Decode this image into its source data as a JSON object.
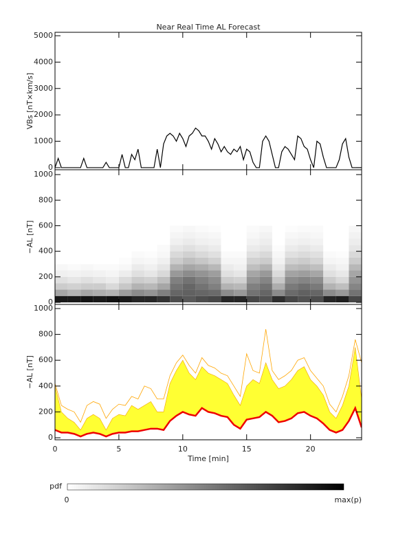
{
  "chart_data": [
    {
      "type": "line",
      "title": "Near Real Time AL Forecast",
      "ylabel": "VBs [nT×km/s]",
      "xlim": [
        0,
        24
      ],
      "ylim": [
        -80,
        5130
      ],
      "yticks": [
        0,
        1000,
        2000,
        3000,
        4000,
        5000
      ],
      "series": [
        {
          "color": "#000000",
          "x": [
            0,
            0.25,
            0.5,
            0.75,
            1,
            1.25,
            1.5,
            1.75,
            2,
            2.25,
            2.5,
            2.75,
            3,
            3.25,
            3.5,
            3.75,
            4,
            4.25,
            4.5,
            4.75,
            5,
            5.25,
            5.5,
            5.75,
            6,
            6.25,
            6.5,
            6.75,
            7,
            7.25,
            7.5,
            7.75,
            8,
            8.25,
            8.5,
            8.75,
            9,
            9.25,
            9.5,
            9.75,
            10,
            10.25,
            10.5,
            10.75,
            11,
            11.25,
            11.5,
            11.75,
            12,
            12.25,
            12.5,
            12.75,
            13,
            13.25,
            13.5,
            13.75,
            14,
            14.25,
            14.5,
            14.75,
            15,
            15.25,
            15.5,
            15.75,
            16,
            16.25,
            16.5,
            16.75,
            17,
            17.25,
            17.5,
            17.75,
            18,
            18.25,
            18.5,
            18.75,
            19,
            19.25,
            19.5,
            19.75,
            20,
            20.25,
            20.5,
            20.75,
            21,
            21.25,
            21.5,
            21.75,
            22,
            22.25,
            22.5,
            22.75,
            23,
            23.25,
            23.5,
            23.75,
            24
          ],
          "values": [
            0,
            350,
            0,
            0,
            0,
            0,
            0,
            0,
            0,
            350,
            0,
            0,
            0,
            0,
            0,
            0,
            200,
            0,
            0,
            0,
            0,
            500,
            0,
            0,
            500,
            300,
            700,
            0,
            0,
            0,
            0,
            0,
            700,
            0,
            900,
            1200,
            1300,
            1200,
            1000,
            1300,
            1100,
            800,
            1200,
            1300,
            1500,
            1400,
            1200,
            1200,
            1000,
            700,
            1100,
            900,
            600,
            800,
            600,
            500,
            700,
            600,
            800,
            300,
            700,
            600,
            200,
            0,
            0,
            1000,
            1200,
            1000,
            500,
            0,
            0,
            600,
            800,
            700,
            500,
            300,
            1200,
            1100,
            800,
            700,
            300,
            0,
            1000,
            900,
            400,
            0,
            0,
            0,
            0,
            300,
            900,
            1100,
            400,
            0,
            0,
            0,
            0
          ]
        }
      ]
    },
    {
      "type": "heatmap",
      "ylabel": "−AL [nT]",
      "xlim": [
        0,
        24
      ],
      "ylim": [
        -16,
        1038
      ],
      "yticks": [
        0,
        200,
        400,
        600,
        800,
        1000
      ],
      "xbins": [
        0,
        1,
        2,
        3,
        4,
        5,
        6,
        7,
        8,
        9,
        10,
        11,
        12,
        13,
        14,
        15,
        16,
        17,
        18,
        19,
        20,
        21,
        22,
        23,
        24
      ],
      "ybins": [
        0,
        50,
        100,
        150,
        200,
        250,
        300,
        350,
        400,
        450,
        500,
        550,
        600
      ],
      "z": [
        [
          0.9,
          0.35,
          0.2,
          0.12,
          0.06,
          0.03,
          0,
          0,
          0,
          0,
          0,
          0
        ],
        [
          0.9,
          0.3,
          0.18,
          0.1,
          0.05,
          0.02,
          0,
          0,
          0,
          0,
          0,
          0
        ],
        [
          0.92,
          0.35,
          0.2,
          0.12,
          0.06,
          0.03,
          0,
          0,
          0,
          0,
          0,
          0
        ],
        [
          0.9,
          0.32,
          0.2,
          0.1,
          0.05,
          0.02,
          0,
          0,
          0,
          0,
          0,
          0
        ],
        [
          0.93,
          0.3,
          0.15,
          0.08,
          0.04,
          0.02,
          0,
          0,
          0,
          0,
          0,
          0
        ],
        [
          0.9,
          0.38,
          0.22,
          0.14,
          0.07,
          0.03,
          0.01,
          0,
          0,
          0,
          0,
          0
        ],
        [
          0.85,
          0.45,
          0.3,
          0.2,
          0.12,
          0.08,
          0.04,
          0.02,
          0,
          0,
          0,
          0
        ],
        [
          0.85,
          0.42,
          0.28,
          0.18,
          0.1,
          0.06,
          0.03,
          0.01,
          0,
          0,
          0,
          0
        ],
        [
          0.8,
          0.5,
          0.35,
          0.25,
          0.15,
          0.1,
          0.06,
          0.03,
          0.02,
          0,
          0,
          0
        ],
        [
          0.7,
          0.6,
          0.55,
          0.5,
          0.4,
          0.3,
          0.2,
          0.15,
          0.1,
          0.06,
          0.04,
          0.02
        ],
        [
          0.65,
          0.62,
          0.6,
          0.55,
          0.45,
          0.35,
          0.25,
          0.18,
          0.12,
          0.08,
          0.05,
          0.03
        ],
        [
          0.7,
          0.6,
          0.55,
          0.5,
          0.42,
          0.32,
          0.22,
          0.15,
          0.1,
          0.06,
          0.04,
          0.02
        ],
        [
          0.72,
          0.58,
          0.5,
          0.45,
          0.38,
          0.28,
          0.18,
          0.12,
          0.08,
          0.05,
          0.03,
          0.01
        ],
        [
          0.85,
          0.45,
          0.3,
          0.2,
          0.12,
          0.08,
          0.04,
          0.02,
          0,
          0,
          0,
          0
        ],
        [
          0.85,
          0.4,
          0.28,
          0.18,
          0.1,
          0.06,
          0.04,
          0.02,
          0,
          0,
          0,
          0
        ],
        [
          0.72,
          0.55,
          0.5,
          0.42,
          0.35,
          0.25,
          0.18,
          0.12,
          0.08,
          0.05,
          0.03,
          0.02
        ],
        [
          0.68,
          0.6,
          0.55,
          0.48,
          0.4,
          0.3,
          0.2,
          0.15,
          0.1,
          0.07,
          0.05,
          0.03
        ],
        [
          0.82,
          0.45,
          0.32,
          0.22,
          0.14,
          0.09,
          0.05,
          0.03,
          0.01,
          0,
          0,
          0
        ],
        [
          0.72,
          0.58,
          0.52,
          0.45,
          0.36,
          0.26,
          0.18,
          0.12,
          0.08,
          0.05,
          0.03,
          0.01
        ],
        [
          0.68,
          0.62,
          0.56,
          0.48,
          0.38,
          0.28,
          0.2,
          0.14,
          0.1,
          0.06,
          0.04,
          0.02
        ],
        [
          0.7,
          0.6,
          0.52,
          0.45,
          0.35,
          0.25,
          0.17,
          0.12,
          0.08,
          0.05,
          0.03,
          0.02
        ],
        [
          0.85,
          0.45,
          0.3,
          0.2,
          0.12,
          0.08,
          0.04,
          0.02,
          0,
          0,
          0,
          0
        ],
        [
          0.88,
          0.4,
          0.25,
          0.15,
          0.09,
          0.05,
          0.03,
          0.01,
          0,
          0,
          0,
          0
        ],
        [
          0.72,
          0.55,
          0.48,
          0.42,
          0.35,
          0.28,
          0.2,
          0.15,
          0.1,
          0.07,
          0.05,
          0.03
        ]
      ],
      "colorbar": {
        "label": "pdf",
        "min_label": "0",
        "max_label": "max(p)"
      }
    },
    {
      "type": "area",
      "ylabel": "−AL [nT]",
      "xlabel": "Time [min]",
      "xlim": [
        0,
        24
      ],
      "ylim": [
        -16,
        1032
      ],
      "yticks": [
        0,
        200,
        400,
        600,
        800,
        1000
      ],
      "xticks": [
        0,
        5,
        10,
        15,
        20
      ],
      "x": [
        0,
        0.5,
        1,
        1.5,
        2,
        2.5,
        3,
        3.5,
        4,
        4.5,
        5,
        5.5,
        6,
        6.5,
        7,
        7.5,
        8,
        8.5,
        9,
        9.5,
        10,
        10.5,
        11,
        11.5,
        12,
        12.5,
        13,
        13.5,
        14,
        14.5,
        15,
        15.5,
        16,
        16.5,
        17,
        17.5,
        18,
        18.5,
        19,
        19.5,
        20,
        20.5,
        21,
        21.5,
        22,
        22.5,
        23,
        23.5,
        24
      ],
      "band": {
        "color": "#ffff33",
        "values": [
          400,
          200,
          150,
          120,
          60,
          150,
          180,
          150,
          60,
          150,
          180,
          170,
          250,
          220,
          250,
          280,
          200,
          200,
          420,
          520,
          600,
          500,
          450,
          550,
          500,
          480,
          450,
          420,
          330,
          250,
          400,
          450,
          420,
          580,
          450,
          380,
          400,
          450,
          520,
          550,
          450,
          400,
          330,
          200,
          150,
          250,
          400,
          700,
          300
        ]
      },
      "series": [
        {
          "color": "#ffa500",
          "width": 0.8,
          "values": [
            420,
            250,
            220,
            200,
            120,
            250,
            280,
            260,
            150,
            220,
            260,
            250,
            320,
            300,
            400,
            380,
            300,
            300,
            480,
            580,
            640,
            560,
            500,
            620,
            560,
            540,
            500,
            480,
            400,
            320,
            650,
            520,
            500,
            840,
            520,
            450,
            480,
            520,
            600,
            620,
            520,
            460,
            400,
            260,
            200,
            320,
            480,
            760,
            580
          ]
        },
        {
          "color": "#ee0000",
          "width": 2.5,
          "values": [
            60,
            40,
            40,
            30,
            10,
            30,
            40,
            30,
            10,
            30,
            40,
            40,
            50,
            50,
            60,
            70,
            70,
            60,
            130,
            170,
            200,
            180,
            170,
            230,
            200,
            190,
            170,
            160,
            100,
            70,
            140,
            150,
            160,
            200,
            170,
            120,
            130,
            150,
            190,
            200,
            170,
            150,
            110,
            60,
            40,
            60,
            130,
            230,
            80
          ]
        }
      ]
    }
  ]
}
